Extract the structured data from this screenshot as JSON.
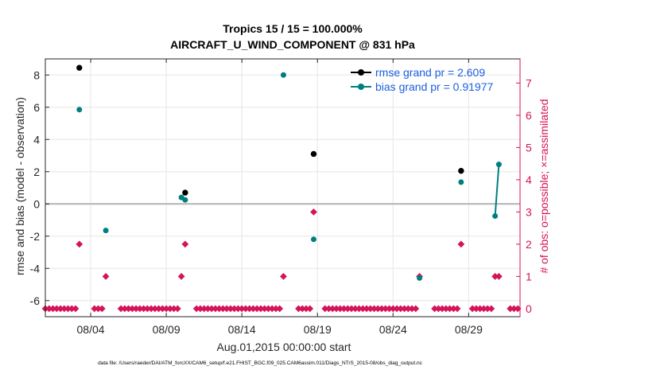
{
  "chart_data": {
    "type": "scatter",
    "title": "Tropics 15 / 15 = 100.000%",
    "subtitle": "AIRCRAFT_U_WIND_COMPONENT @ 831 hPa",
    "xlabel": "Aug.01,2015 00:00:00 start",
    "ylabel": "rmse and bias (model - observation)",
    "y2label": "# of obs: o=possible; ×=assimilated",
    "footer": "data file: /Users/raeder/DAI/ATM_forcXX/CAM6_setup/f.e21.FHIST_BGC.f09_025.CAM6assim.011/Diags_NTrS_2015-08/obs_diag_output.nc",
    "xlim": [
      1,
      32.4
    ],
    "ylim": [
      -7,
      9
    ],
    "y2lim": [
      -0.25,
      7.75
    ],
    "grid": true,
    "legend_position": "top-right",
    "x_ticks": [
      {
        "value": 4,
        "label": "08/04"
      },
      {
        "value": 9,
        "label": "08/09"
      },
      {
        "value": 14,
        "label": "08/14"
      },
      {
        "value": 19,
        "label": "08/19"
      },
      {
        "value": 24,
        "label": "08/24"
      },
      {
        "value": 29,
        "label": "08/29"
      }
    ],
    "y_ticks": [
      {
        "value": -6,
        "label": "-6"
      },
      {
        "value": -4,
        "label": "-4"
      },
      {
        "value": -2,
        "label": "-2"
      },
      {
        "value": 0,
        "label": "0"
      },
      {
        "value": 2,
        "label": "2"
      },
      {
        "value": 4,
        "label": "4"
      },
      {
        "value": 6,
        "label": "6"
      },
      {
        "value": 8,
        "label": "8"
      }
    ],
    "y2_ticks": [
      {
        "value": 0,
        "label": "0"
      },
      {
        "value": 1,
        "label": "1"
      },
      {
        "value": 2,
        "label": "2"
      },
      {
        "value": 3,
        "label": "3"
      },
      {
        "value": 4,
        "label": "4"
      },
      {
        "value": 5,
        "label": "5"
      },
      {
        "value": 6,
        "label": "6"
      },
      {
        "value": 7,
        "label": "7"
      }
    ],
    "zero_line": 0,
    "colors": {
      "rmse": "#000000",
      "bias": "#007f7f",
      "obs_count": "#d4145a",
      "legend_text": "#1a5fe0",
      "grid": "#e6e6e6",
      "zero_line": "#b3b3b3"
    },
    "series": [
      {
        "name": "rmse grand pr = 2.609",
        "key": "rmse",
        "points": [
          {
            "x": 3.25,
            "y": 8.45
          },
          {
            "x": 10.25,
            "y": 0.7
          },
          {
            "x": 18.75,
            "y": 3.1
          },
          {
            "x": 28.5,
            "y": 2.05
          }
        ]
      },
      {
        "name": "bias grand pr = 0.91977",
        "key": "bias",
        "points": [
          {
            "x": 3.25,
            "y": 5.85
          },
          {
            "x": 5.0,
            "y": -1.65
          },
          {
            "x": 10.0,
            "y": 0.4
          },
          {
            "x": 10.25,
            "y": 0.25
          },
          {
            "x": 16.75,
            "y": 8.0
          },
          {
            "x": 18.75,
            "y": -2.2
          },
          {
            "x": 25.75,
            "y": -4.6
          },
          {
            "x": 28.5,
            "y": 1.35
          },
          {
            "x": 30.75,
            "y": -0.75
          },
          {
            "x": 31.0,
            "y": 2.45
          }
        ],
        "segments": [
          [
            8,
            9
          ]
        ]
      },
      {
        "key": "obs_count",
        "axis": "right",
        "x_start": 1.0,
        "x_step": 0.25,
        "x_end": 32.25,
        "counts": {
          "3.25": 2,
          "5.0": 1,
          "10.0": 1,
          "10.25": 2,
          "16.75": 1,
          "18.75": 3,
          "25.75": 1,
          "28.5": 2,
          "30.75": 1,
          "31.0": 1
        },
        "gaps": [
          [
            3.5,
            4.0
          ],
          [
            5.25,
            5.75
          ],
          [
            10.5,
            10.75
          ],
          [
            17.0,
            17.5
          ],
          [
            19.0,
            19.25
          ],
          [
            26.0,
            26.5
          ],
          [
            28.75,
            29.0
          ],
          [
            31.25,
            31.5
          ]
        ]
      }
    ]
  }
}
